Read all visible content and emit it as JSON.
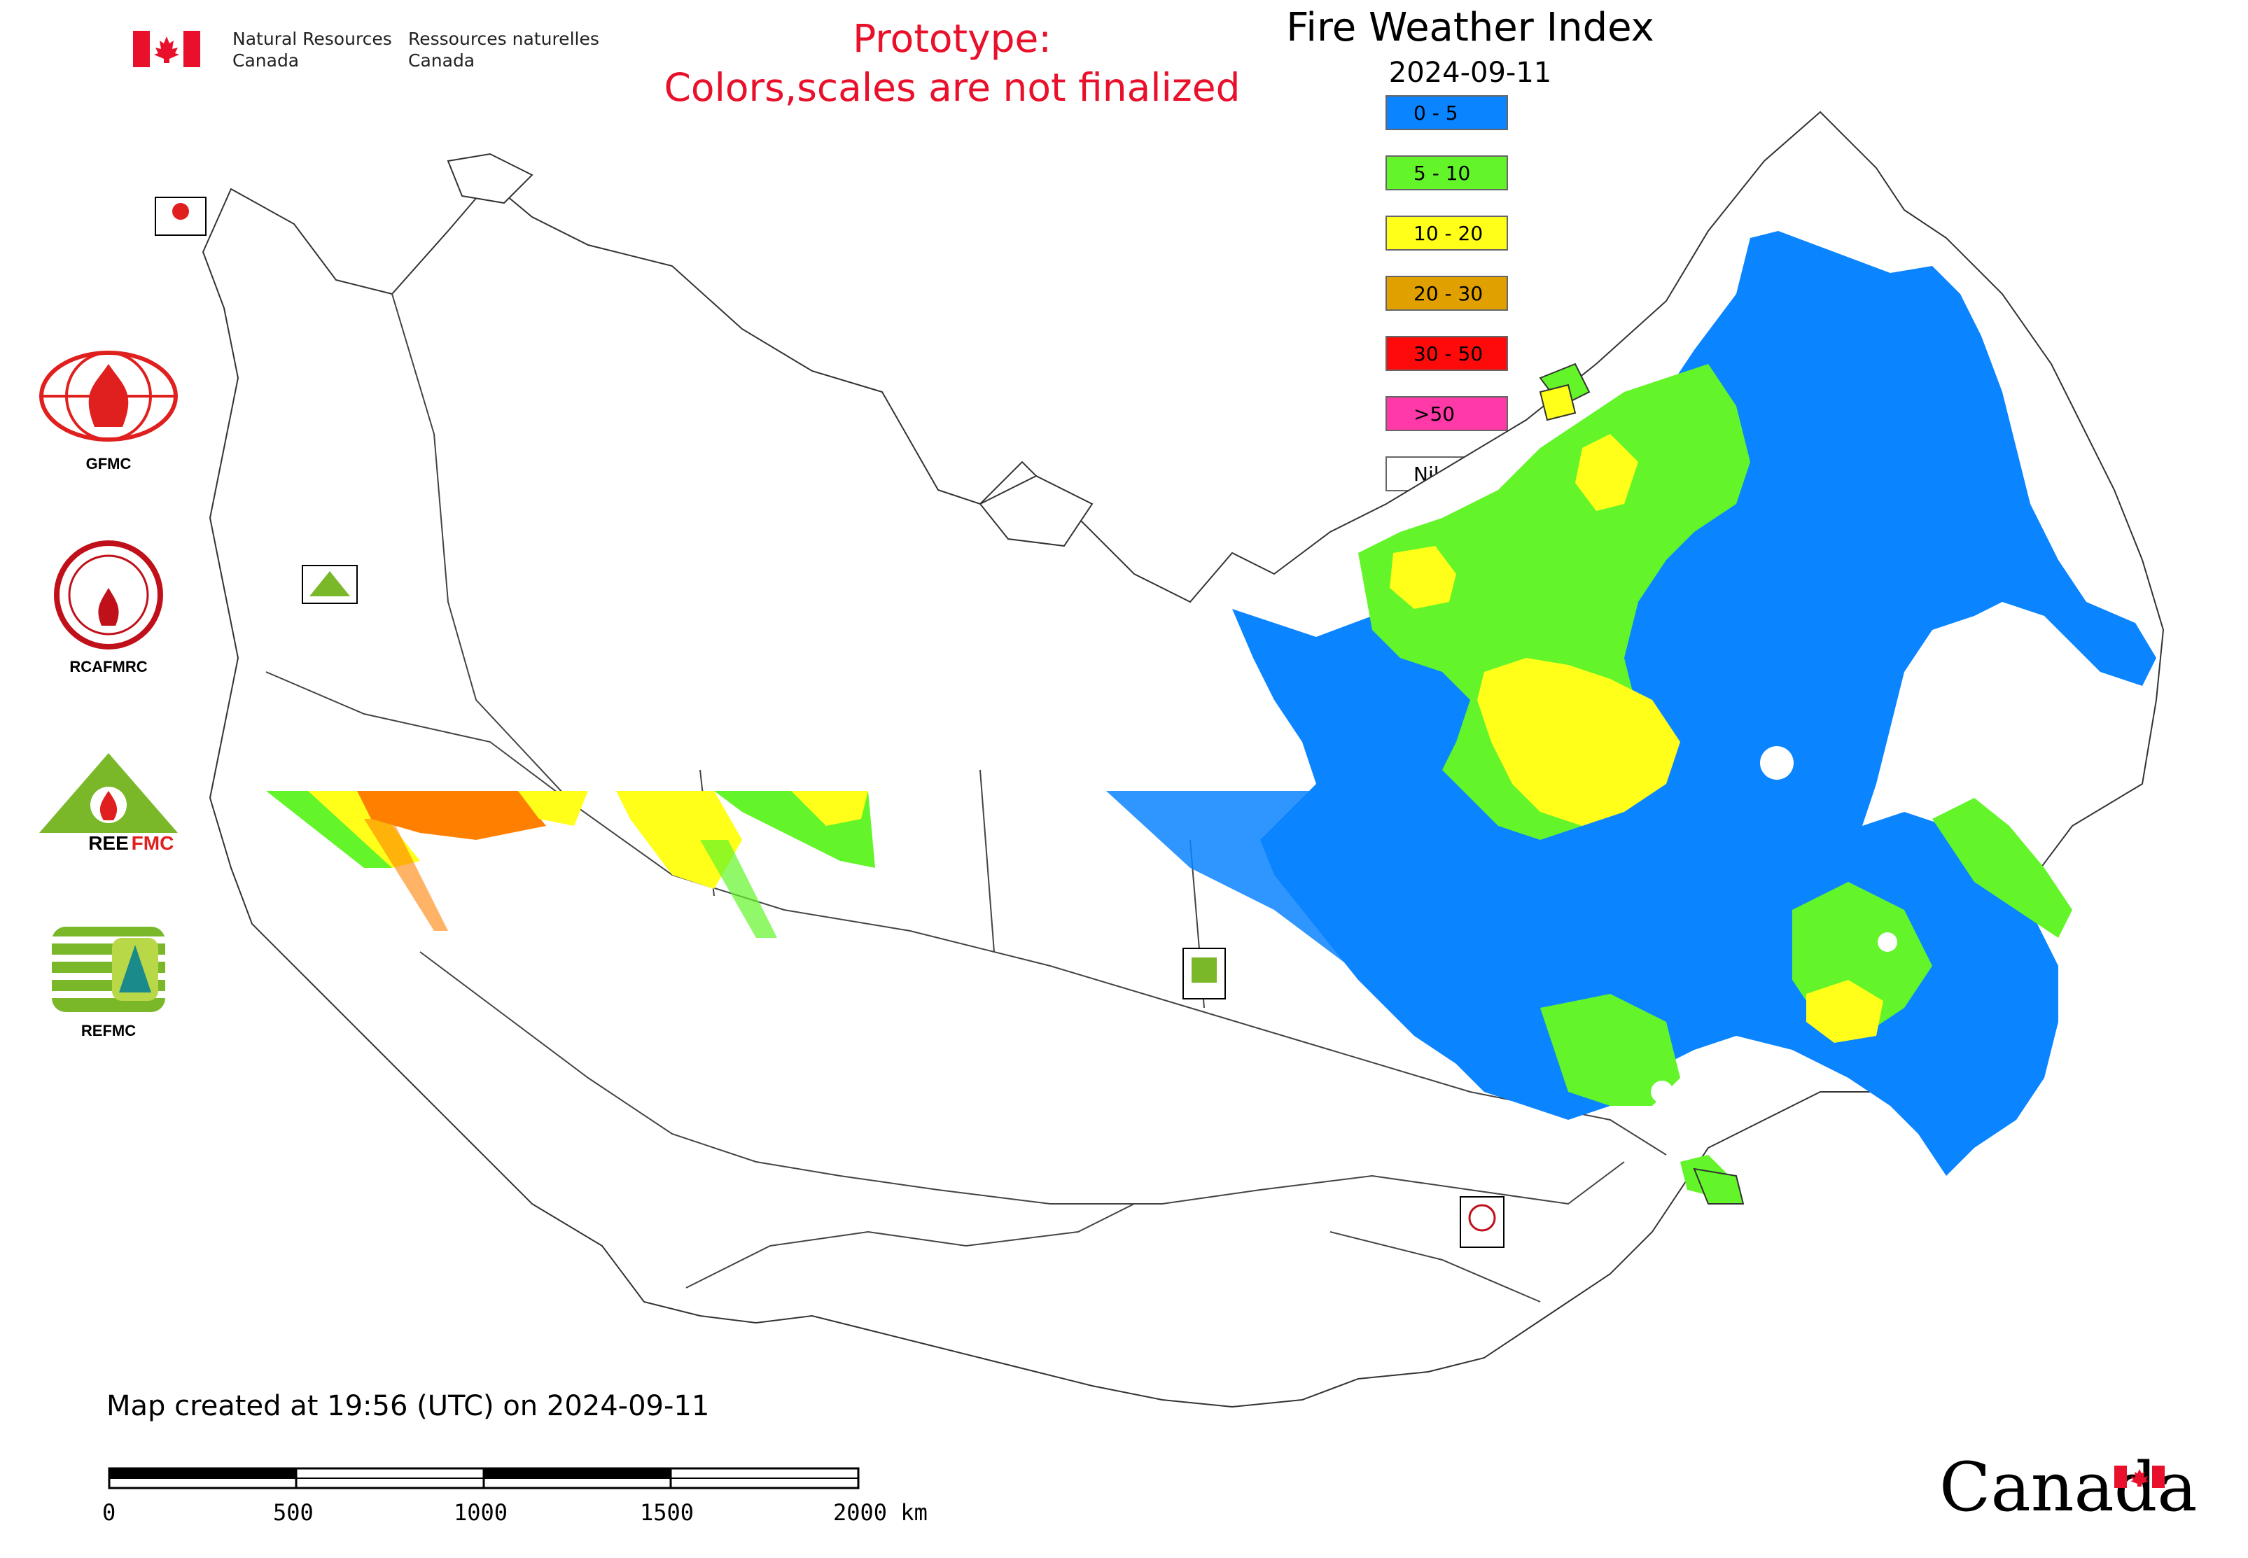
{
  "header": {
    "org_en_line1": "Natural Resources",
    "org_en_line2": "Canada",
    "org_fr_line1": "Ressources naturelles",
    "org_fr_line2": "Canada",
    "prototype_line1": "Prototype:",
    "prototype_line2": "Colors,scales are not finalized"
  },
  "map": {
    "title": "Fire Weather Index",
    "date": "2024-09-11"
  },
  "legend": {
    "items": [
      {
        "label": "0 - 5",
        "color": "#0a84ff"
      },
      {
        "label": "5 - 10",
        "color": "#63f52a"
      },
      {
        "label": "10 - 20",
        "color": "#ffff1a"
      },
      {
        "label": "20 - 30",
        "color": "#e0a000"
      },
      {
        "label": "30 - 50",
        "color": "#ff0a0a"
      },
      {
        "label": ">50",
        "color": "#ff3aa8"
      },
      {
        "label": "Nil / s.o.",
        "color": "#ffffff"
      }
    ]
  },
  "logos": {
    "gfmc": "GFMC",
    "rcafmrc": "RCAFMRC",
    "reefmc": "REEFMC",
    "refmc": "REFMC"
  },
  "footer": {
    "note": "Map created at 19:56 (UTC) on 2024-09-11",
    "scale_ticks": [
      "0",
      "500",
      "1000",
      "1500",
      "2000 km"
    ],
    "wordmark": "Canada"
  },
  "colors": {
    "brand_red": "#e8102a",
    "outline": "#333333"
  }
}
